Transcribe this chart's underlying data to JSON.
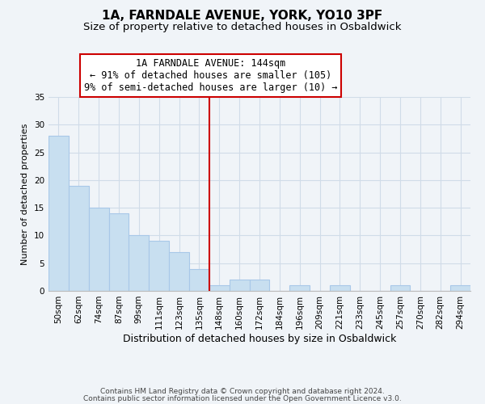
{
  "title": "1A, FARNDALE AVENUE, YORK, YO10 3PF",
  "subtitle": "Size of property relative to detached houses in Osbaldwick",
  "xlabel": "Distribution of detached houses by size in Osbaldwick",
  "ylabel": "Number of detached properties",
  "bin_labels": [
    "50sqm",
    "62sqm",
    "74sqm",
    "87sqm",
    "99sqm",
    "111sqm",
    "123sqm",
    "135sqm",
    "148sqm",
    "160sqm",
    "172sqm",
    "184sqm",
    "196sqm",
    "209sqm",
    "221sqm",
    "233sqm",
    "245sqm",
    "257sqm",
    "270sqm",
    "282sqm",
    "294sqm"
  ],
  "bin_counts": [
    28,
    19,
    15,
    14,
    10,
    9,
    7,
    4,
    1,
    2,
    2,
    0,
    1,
    0,
    1,
    0,
    0,
    1,
    0,
    0,
    1
  ],
  "bar_color": "#c8dff0",
  "bar_edge_color": "#a8c8e8",
  "property_line_x": 7.5,
  "vline_color": "#cc0000",
  "annotation_line1": "1A FARNDALE AVENUE: 144sqm",
  "annotation_line2": "← 91% of detached houses are smaller (105)",
  "annotation_line3": "9% of semi-detached houses are larger (10) →",
  "annotation_box_color": "#ffffff",
  "annotation_box_edge": "#cc0000",
  "ylim": [
    0,
    35
  ],
  "yticks": [
    0,
    5,
    10,
    15,
    20,
    25,
    30,
    35
  ],
  "footer_line1": "Contains HM Land Registry data © Crown copyright and database right 2024.",
  "footer_line2": "Contains public sector information licensed under the Open Government Licence v3.0.",
  "title_fontsize": 11,
  "subtitle_fontsize": 9.5,
  "xlabel_fontsize": 9,
  "ylabel_fontsize": 8,
  "tick_fontsize": 7.5,
  "annotation_fontsize": 8.5,
  "footer_fontsize": 6.5,
  "grid_color": "#d0dce8",
  "background_color": "#f0f4f8"
}
